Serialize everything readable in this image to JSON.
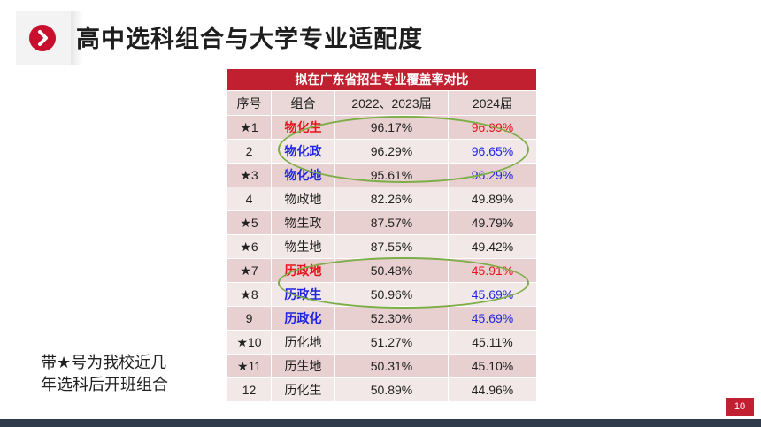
{
  "title": "高中选科组合与大学专业适配度",
  "table": {
    "caption": "拟在广东省招生专业覆盖率对比",
    "headers": [
      "序号",
      "组合",
      "2022、2023届",
      "2024届"
    ],
    "rows": [
      {
        "no": "★1",
        "combo": "物化生",
        "v1": "96.17%",
        "v2": "96.99%",
        "combo_color": "red",
        "v2_color": "red"
      },
      {
        "no": "2",
        "combo": "物化政",
        "v1": "96.29%",
        "v2": "96.65%",
        "combo_color": "blue",
        "v2_color": "blue"
      },
      {
        "no": "★3",
        "combo": "物化地",
        "v1": "95.61%",
        "v2": "96.29%",
        "combo_color": "blue",
        "v2_color": "blue"
      },
      {
        "no": "4",
        "combo": "物政地",
        "v1": "82.26%",
        "v2": "49.89%",
        "combo_color": "",
        "v2_color": ""
      },
      {
        "no": "★5",
        "combo": "物生政",
        "v1": "87.57%",
        "v2": "49.79%",
        "combo_color": "",
        "v2_color": ""
      },
      {
        "no": "★6",
        "combo": "物生地",
        "v1": "87.55%",
        "v2": "49.42%",
        "combo_color": "",
        "v2_color": ""
      },
      {
        "no": "★7",
        "combo": "历政地",
        "v1": "50.48%",
        "v2": "45.91%",
        "combo_color": "red",
        "v2_color": "red"
      },
      {
        "no": "★8",
        "combo": "历政生",
        "v1": "50.96%",
        "v2": "45.69%",
        "combo_color": "blue",
        "v2_color": "blue"
      },
      {
        "no": "9",
        "combo": "历政化",
        "v1": "52.30%",
        "v2": "45.69%",
        "combo_color": "blue",
        "v2_color": "blue"
      },
      {
        "no": "★10",
        "combo": "历化地",
        "v1": "51.27%",
        "v2": "45.11%",
        "combo_color": "",
        "v2_color": ""
      },
      {
        "no": "★11",
        "combo": "历生地",
        "v1": "50.31%",
        "v2": "45.10%",
        "combo_color": "",
        "v2_color": ""
      },
      {
        "no": "12",
        "combo": "历化生",
        "v1": "50.89%",
        "v2": "44.96%",
        "combo_color": "",
        "v2_color": ""
      }
    ]
  },
  "note_line1": "带★号为我校近几",
  "note_line2": "年选科后开班组合",
  "page_number": "10",
  "colors": {
    "accent": "#c0202f",
    "highlight_red": "#e8131a",
    "highlight_blue": "#1f24e0",
    "ellipse": "#7cae48",
    "footer": "#2f3a4a"
  },
  "icons": {
    "title_badge": "chevron-right-icon"
  }
}
